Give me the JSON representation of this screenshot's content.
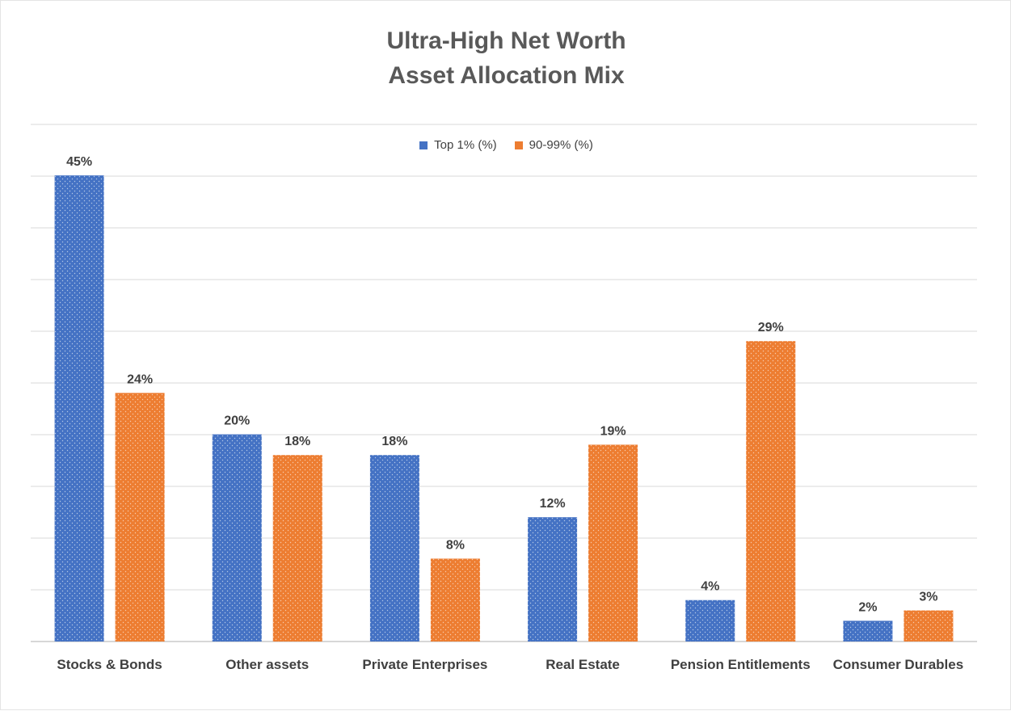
{
  "chart_data": {
    "type": "bar",
    "title_lines": [
      "Ultra-High Net Worth",
      "Asset Allocation Mix"
    ],
    "categories": [
      "Stocks & Bonds",
      "Other assets",
      "Private Enterprises",
      "Real Estate",
      "Pension Entitlements",
      "Consumer Durables"
    ],
    "series": [
      {
        "name": "Top 1% (%)",
        "color": "#4472c4",
        "values": [
          45,
          20,
          18,
          12,
          4,
          2
        ],
        "labels": [
          "45%",
          "20%",
          "18%",
          "12%",
          "4%",
          "2%"
        ]
      },
      {
        "name": "90-99% (%)",
        "color": "#ed7d31",
        "values": [
          24,
          18,
          8,
          19,
          29,
          3
        ],
        "labels": [
          "24%",
          "18%",
          "8%",
          "19%",
          "29%",
          "3%"
        ]
      }
    ],
    "ylim": [
      0,
      50
    ],
    "gridlines": true,
    "y_axis_visible": false,
    "legend_position": "top",
    "pattern": "dotted"
  }
}
